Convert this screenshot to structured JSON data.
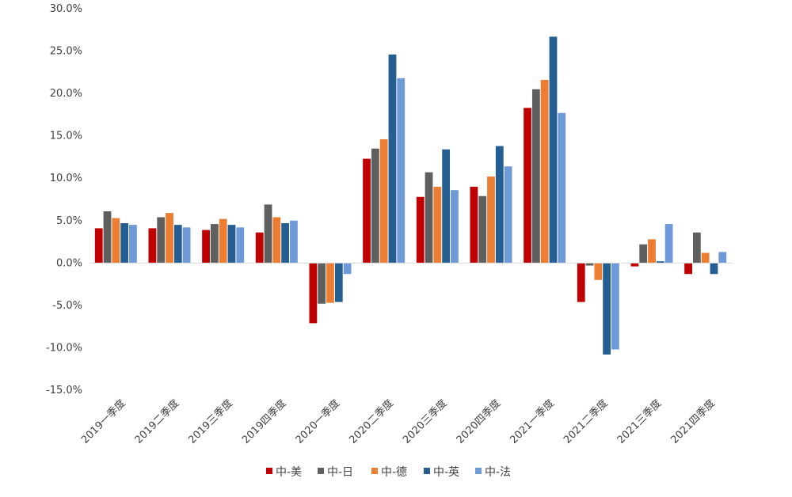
{
  "chart_data": {
    "type": "bar",
    "title": "",
    "xlabel": "",
    "ylabel": "",
    "ylim": [
      -15,
      30
    ],
    "y_ticks": [
      "30.0%",
      "25.0%",
      "20.0%",
      "15.0%",
      "10.0%",
      "5.0%",
      "0.0%",
      "-5.0%",
      "-10.0%",
      "-15.0%"
    ],
    "y_tick_values": [
      30,
      25,
      20,
      15,
      10,
      5,
      0,
      -5,
      -10,
      -15
    ],
    "grid": false,
    "legend_position": "bottom",
    "categories": [
      "2019一季度",
      "2019二季度",
      "2019三季度",
      "2019四季度",
      "2020一季度",
      "2020二季度",
      "2020三季度",
      "2020四季度",
      "2021一季度",
      "2021二季度",
      "2021三季度",
      "2021四季度"
    ],
    "series": [
      {
        "name": "中-美",
        "color": "#c00000",
        "values": [
          4.1,
          4.1,
          3.9,
          3.6,
          -7.1,
          12.3,
          7.8,
          9.0,
          18.3,
          -4.6,
          -0.4,
          -1.3
        ]
      },
      {
        "name": "中-日",
        "color": "#5f5f5f",
        "values": [
          6.1,
          5.4,
          4.6,
          6.9,
          -4.8,
          13.5,
          10.7,
          7.9,
          20.5,
          -0.3,
          2.2,
          3.6
        ]
      },
      {
        "name": "中-德",
        "color": "#ed7d31",
        "values": [
          5.3,
          5.9,
          5.2,
          5.4,
          -4.7,
          14.6,
          9.0,
          10.2,
          21.6,
          -2.0,
          2.8,
          1.2
        ]
      },
      {
        "name": "中-英",
        "color": "#255e91",
        "values": [
          4.7,
          4.5,
          4.5,
          4.7,
          -4.6,
          24.6,
          13.4,
          13.8,
          26.7,
          -10.8,
          0.2,
          -1.3
        ]
      },
      {
        "name": "中-法",
        "color": "#6f9ad8",
        "values": [
          4.5,
          4.2,
          4.2,
          5.0,
          -1.3,
          21.8,
          8.6,
          11.4,
          17.7,
          -10.2,
          4.6,
          1.3
        ]
      }
    ]
  }
}
